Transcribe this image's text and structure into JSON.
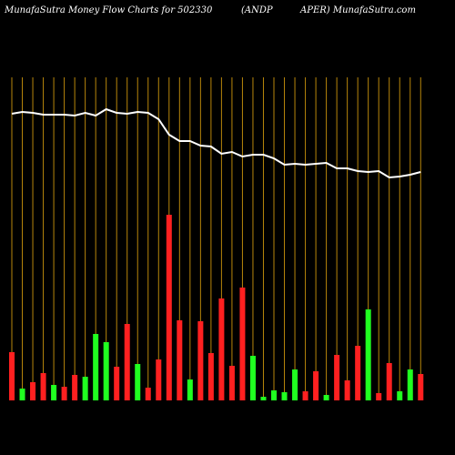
{
  "chart_data": {
    "type": "money-flow",
    "title_parts": [
      "MunafaSutra  Money Flow  Charts for 502330",
      "(ANDP",
      "APER) MunafaSutra.com"
    ],
    "ylim": [
      0,
      355
    ],
    "bars": {
      "values": [
        53,
        13,
        20,
        30,
        17,
        15,
        28,
        26,
        73,
        64,
        37,
        84,
        40,
        14,
        45,
        204,
        88,
        23,
        87,
        52,
        112,
        38,
        124,
        49,
        4,
        11,
        9,
        34,
        10,
        32,
        6,
        50,
        22,
        60,
        100,
        8,
        41,
        10,
        34,
        29
      ],
      "colors": [
        "#ff2020",
        "#20ff20",
        "#ff2020",
        "#ff2020",
        "#20ff20",
        "#ff2020",
        "#ff2020",
        "#20ff20",
        "#20ff20",
        "#20ff20",
        "#ff2020",
        "#ff2020",
        "#20ff20",
        "#ff2020",
        "#ff2020",
        "#ff2020",
        "#ff2020",
        "#20ff20",
        "#ff2020",
        "#ff2020",
        "#ff2020",
        "#ff2020",
        "#ff2020",
        "#20ff20",
        "#20ff20",
        "#20ff20",
        "#20ff20",
        "#20ff20",
        "#ff2020",
        "#ff2020",
        "#20ff20",
        "#ff2020",
        "#ff2020",
        "#ff2020",
        "#20ff20",
        "#ff2020",
        "#ff2020",
        "#20ff20",
        "#20ff20",
        "#ff2020"
      ]
    },
    "line": {
      "color": "#ffffff",
      "values": [
        315,
        317,
        316,
        314,
        314,
        314,
        313,
        316,
        313,
        320,
        316,
        315,
        317,
        316,
        309,
        292,
        285,
        285,
        280,
        279,
        271,
        273,
        268,
        270,
        270,
        266,
        259,
        260,
        259,
        260,
        261,
        255,
        255,
        252,
        251,
        252,
        245,
        246,
        248,
        251
      ]
    },
    "gridline_color": "#b8860b"
  }
}
